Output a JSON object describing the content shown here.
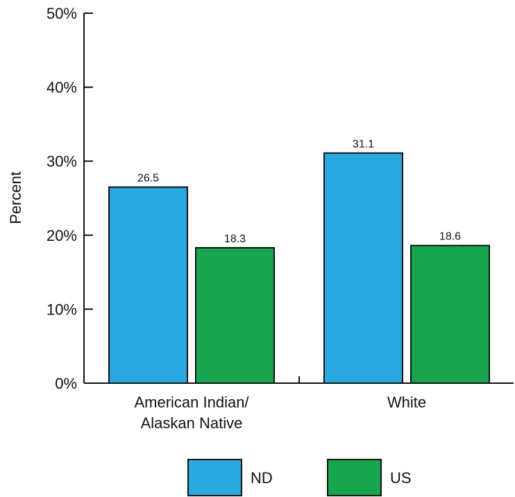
{
  "chart_data": {
    "type": "bar",
    "title": "",
    "xlabel": "",
    "ylabel": "Percent",
    "ylim": [
      0,
      50
    ],
    "y_ticks": [
      {
        "value": 0,
        "label": "0%"
      },
      {
        "value": 10,
        "label": "10%"
      },
      {
        "value": 20,
        "label": "20%"
      },
      {
        "value": 30,
        "label": "30%"
      },
      {
        "value": 40,
        "label": "40%"
      },
      {
        "value": 50,
        "label": "50%"
      }
    ],
    "categories": [
      {
        "lines": [
          "American Indian/",
          "Alaskan Native"
        ]
      },
      {
        "lines": [
          "White"
        ]
      }
    ],
    "series": [
      {
        "name": "ND",
        "color": "#29a8e0",
        "values": [
          26.5,
          31.1
        ],
        "labels": [
          "26.5",
          "31.1"
        ]
      },
      {
        "name": "US",
        "color": "#17a54e",
        "values": [
          18.3,
          18.6
        ],
        "labels": [
          "18.3",
          "18.6"
        ]
      }
    ],
    "legend_position": "bottom",
    "grid": false
  }
}
